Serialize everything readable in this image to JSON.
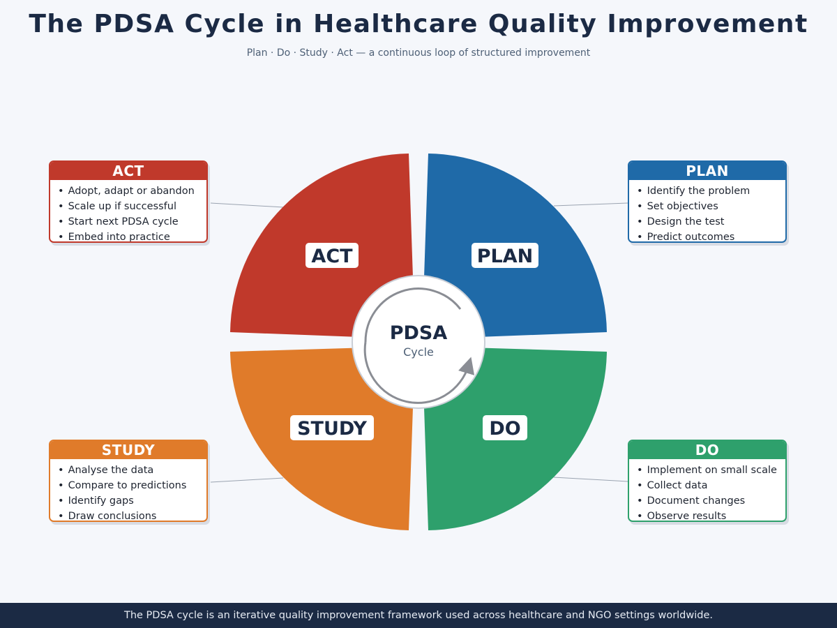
{
  "title": "The PDSA Cycle in Healthcare Quality Improvement",
  "subtitle": "Plan · Do · Study · Act — a continuous loop of structured improvement",
  "center": {
    "title": "PDSA",
    "subtitle": "Cycle"
  },
  "colors": {
    "plan": "#1f6aa8",
    "do": "#2ea06c",
    "study": "#e07b2a",
    "act": "#c0392b",
    "ink": "#1b2a44"
  },
  "quadrants": [
    {
      "key": "plan",
      "label": "PLAN"
    },
    {
      "key": "do",
      "label": "DO"
    },
    {
      "key": "study",
      "label": "STUDY"
    },
    {
      "key": "act",
      "label": "ACT"
    }
  ],
  "cards": {
    "act": {
      "heading": "ACT",
      "items": [
        "Adopt, adapt or abandon",
        "Scale up if successful",
        "Start next PDSA cycle",
        "Embed into practice"
      ]
    },
    "plan": {
      "heading": "PLAN",
      "items": [
        "Identify the problem",
        "Set objectives",
        "Design the test",
        "Predict outcomes"
      ]
    },
    "study": {
      "heading": "STUDY",
      "items": [
        "Analyse the data",
        "Compare to predictions",
        "Identify gaps",
        "Draw conclusions"
      ]
    },
    "do": {
      "heading": "DO",
      "items": [
        "Implement on small scale",
        "Collect data",
        "Document changes",
        "Observe results"
      ]
    }
  },
  "footer": "The PDSA cycle is an iterative quality improvement framework used across healthcare and NGO settings worldwide."
}
